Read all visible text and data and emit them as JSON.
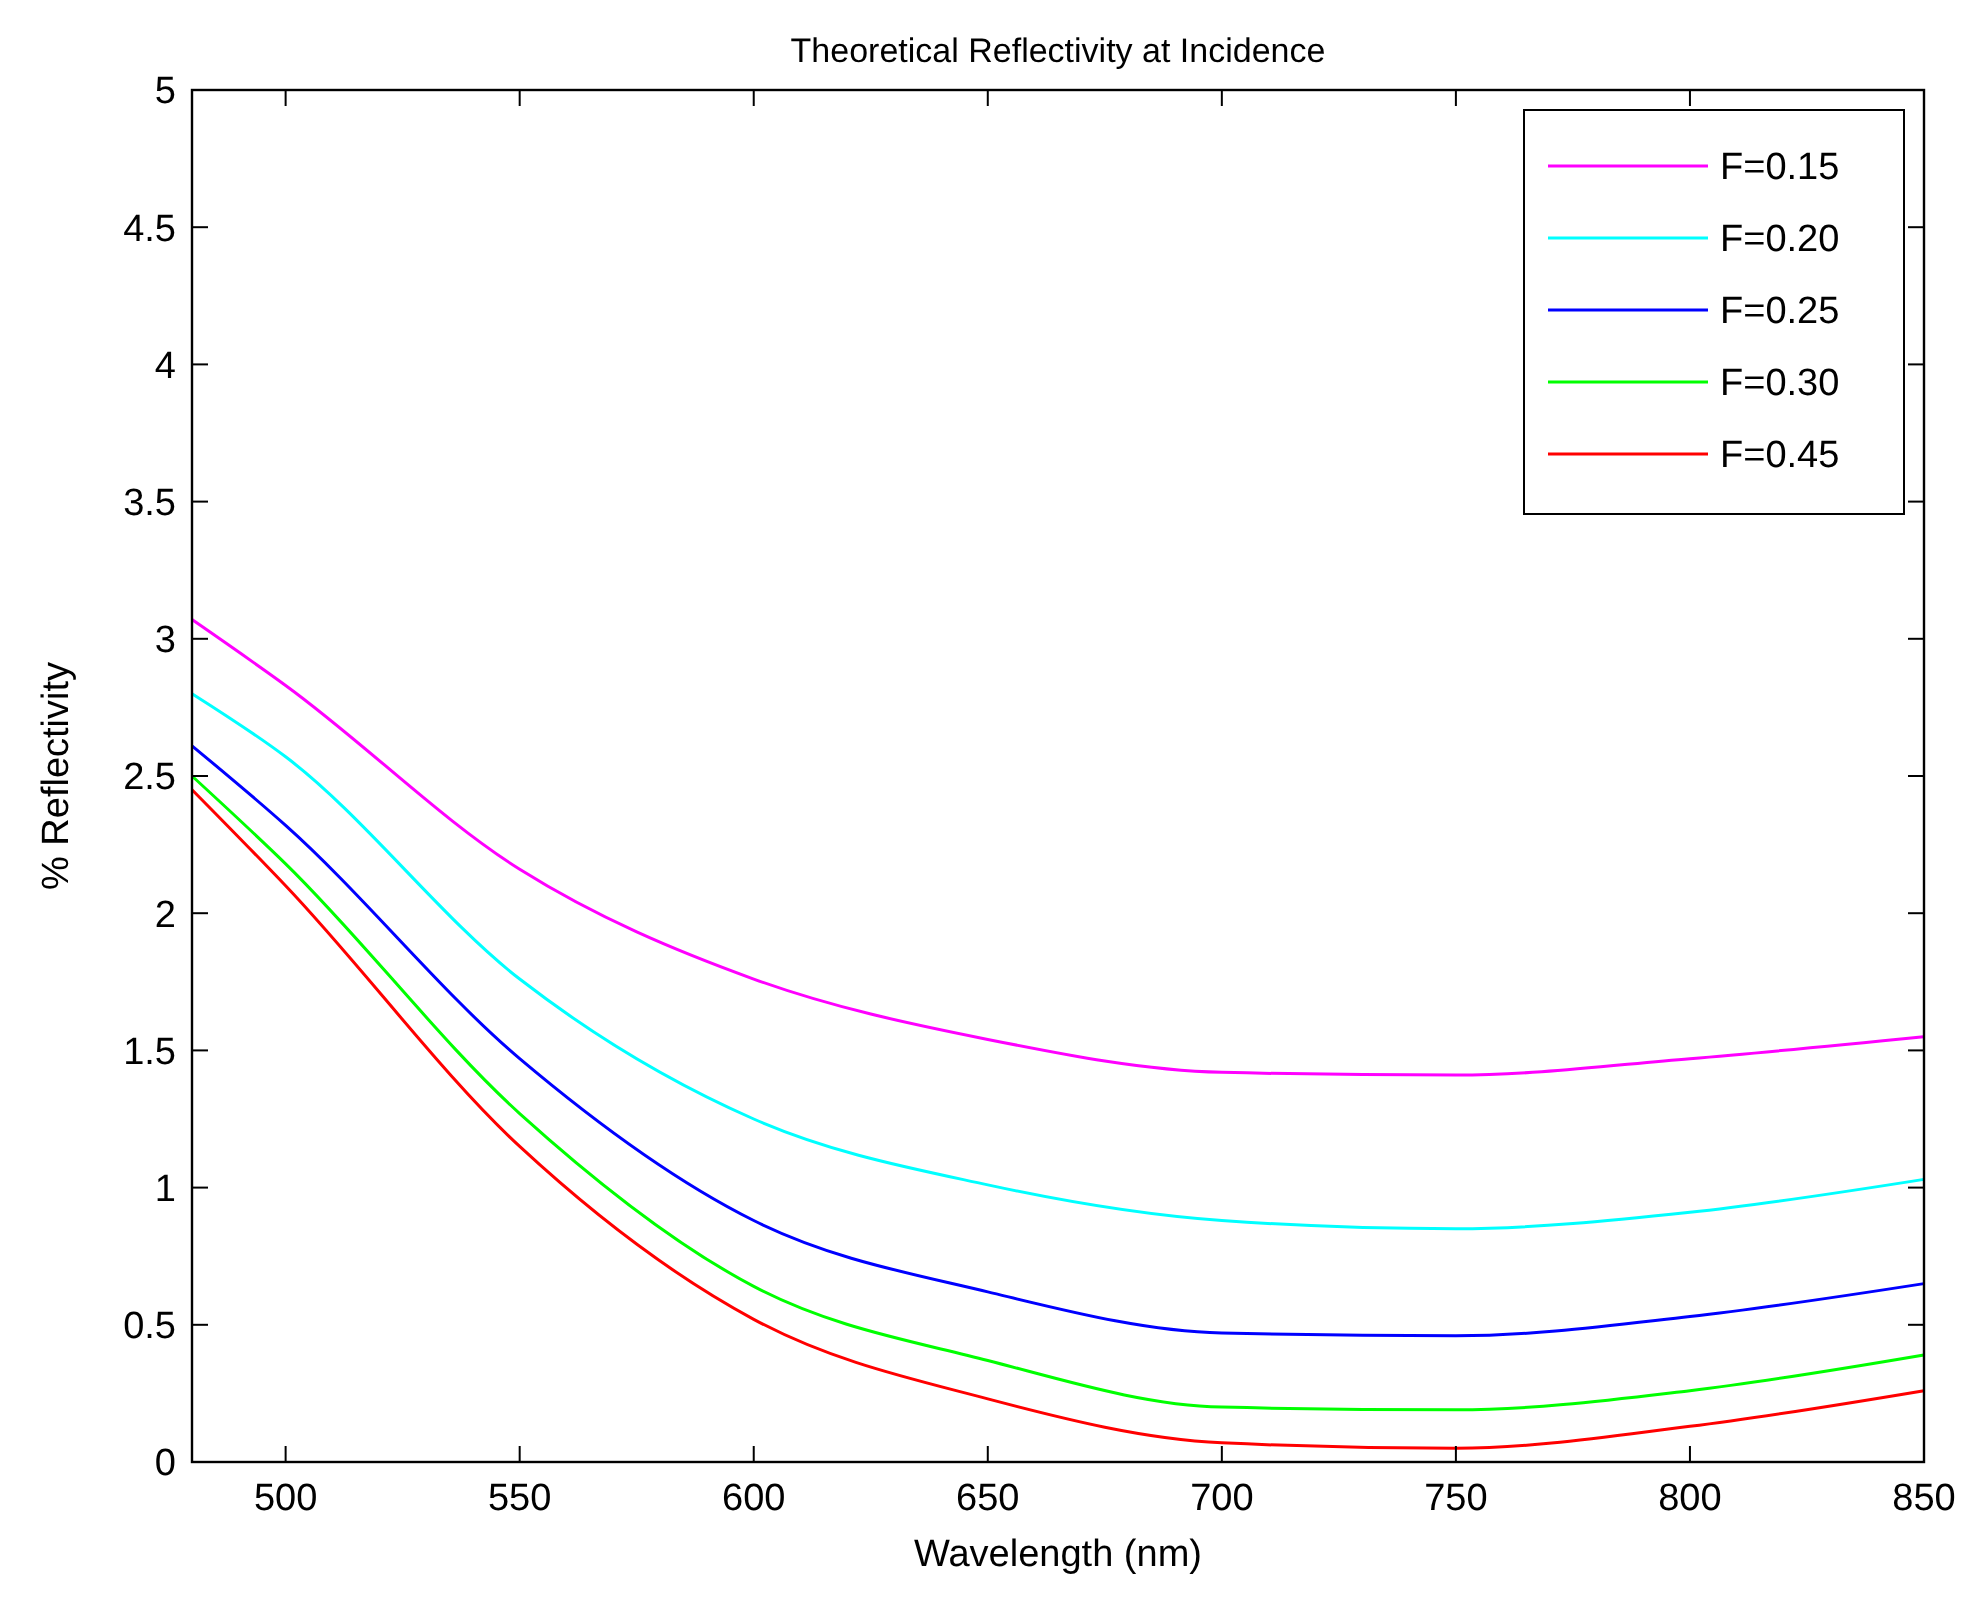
{
  "chart_data": {
    "type": "line",
    "title": "Theoretical Reflectivity at Incidence",
    "xlabel": "Wavelength (nm)",
    "ylabel": "% Reflectivity",
    "x": [
      480,
      500,
      550,
      600,
      650,
      700,
      750,
      800,
      850
    ],
    "series": [
      {
        "name": "F=0.15",
        "color": "#ff00ff",
        "values": [
          3.07,
          2.83,
          2.16,
          1.76,
          1.54,
          1.42,
          1.41,
          1.47,
          1.55
        ]
      },
      {
        "name": "F=0.20",
        "color": "#00ffff",
        "values": [
          2.8,
          2.57,
          1.76,
          1.25,
          1.01,
          0.88,
          0.85,
          0.91,
          1.03
        ]
      },
      {
        "name": "F=0.25",
        "color": "#0000ff",
        "values": [
          2.61,
          2.32,
          1.47,
          0.88,
          0.62,
          0.47,
          0.46,
          0.53,
          0.65
        ]
      },
      {
        "name": "F=0.30",
        "color": "#00ff00",
        "values": [
          2.5,
          2.18,
          1.27,
          0.64,
          0.37,
          0.2,
          0.19,
          0.26,
          0.39
        ]
      },
      {
        "name": "F=0.45",
        "color": "#ff0000",
        "values": [
          2.45,
          2.1,
          1.15,
          0.52,
          0.23,
          0.07,
          0.05,
          0.13,
          0.26
        ]
      }
    ],
    "xlim": [
      480,
      850
    ],
    "xticks": [
      500,
      550,
      600,
      650,
      700,
      750,
      800,
      850
    ],
    "ylim": [
      0,
      5
    ],
    "yticks": [
      0,
      0.5,
      1,
      1.5,
      2,
      2.5,
      3,
      3.5,
      4,
      4.5,
      5
    ],
    "grid": false,
    "legend": "top right",
    "marker": "none",
    "line_style": "solid"
  }
}
